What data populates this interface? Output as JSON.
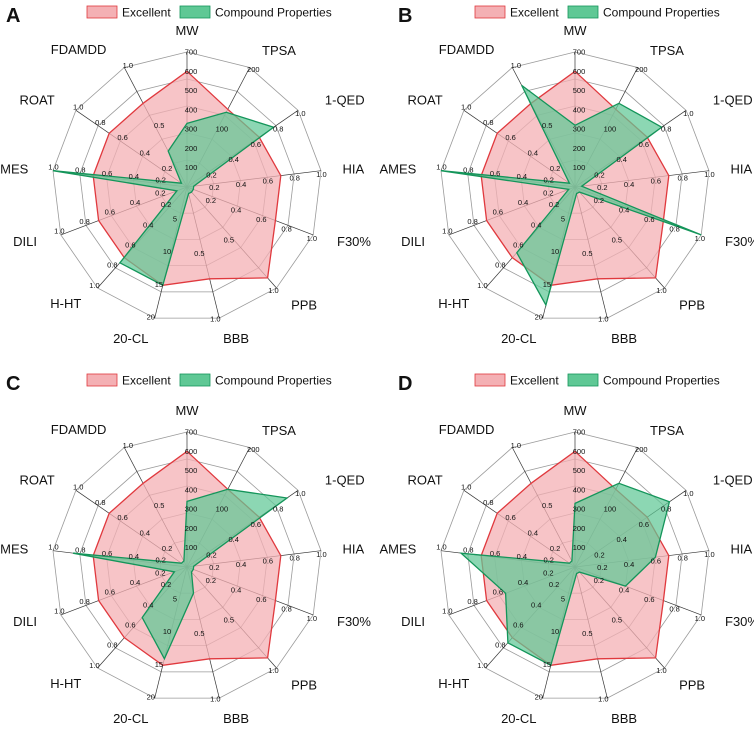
{
  "chart_data": [
    {
      "type": "radar",
      "panel": "A",
      "legend": [
        "Excellent",
        "Compound Properties"
      ],
      "axes": [
        "MW",
        "TPSA",
        "1-QED",
        "HIA",
        "F30%",
        "PPB",
        "BBB",
        "20-CL",
        "H-HT",
        "DILI",
        "AMES",
        "ROAT",
        "FDAMDD"
      ],
      "axis_max": [
        700,
        200,
        1.0,
        1.0,
        1.0,
        1.0,
        1.0,
        20,
        1.0,
        1.0,
        1.0,
        1.0,
        1.0
      ],
      "axis_ticks": [
        [
          "100",
          "200",
          "300",
          "400",
          "500",
          "600",
          "700"
        ],
        [
          "100",
          "200"
        ],
        [
          "0.2",
          "0.4",
          "0.6",
          "0.8",
          "1.0"
        ],
        [
          "0.2",
          "0.4",
          "0.6",
          "0.8",
          "1.0"
        ],
        [
          "0.2",
          "0.4",
          "0.6",
          "0.8",
          "1.0"
        ],
        [
          "0.5",
          "1.0"
        ],
        [
          "0.5",
          "1.0"
        ],
        [
          "5",
          "10",
          "15",
          "20"
        ],
        [
          "0.2",
          "0.4",
          "0.6",
          "0.8",
          "1.0"
        ],
        [
          "0.2",
          "0.4",
          "0.6",
          "0.8",
          "1.0"
        ],
        [
          "0.2",
          "0.4",
          "0.6",
          "0.8",
          "1.0"
        ],
        [
          "0.2",
          "0.4",
          "0.6",
          "0.8",
          "1.0"
        ],
        [
          "0.5",
          "1.0"
        ]
      ],
      "series": [
        {
          "name": "Excellent",
          "values": [
            600,
            130,
            0.65,
            0.7,
            0.7,
            0.9,
            0.7,
            15,
            0.7,
            0.7,
            0.7,
            0.7,
            0.7
          ]
        },
        {
          "name": "Compound Properties",
          "values": [
            330,
            125,
            0.78,
            0.05,
            0.05,
            0.05,
            0.05,
            15,
            0.75,
            0.08,
            1.0,
            0.05,
            0.3
          ]
        }
      ]
    },
    {
      "type": "radar",
      "panel": "B",
      "legend": [
        "Excellent",
        "Compound Properties"
      ],
      "axes": [
        "MW",
        "TPSA",
        "1-QED",
        "HIA",
        "F30%",
        "PPB",
        "BBB",
        "20-CL",
        "H-HT",
        "DILI",
        "AMES",
        "ROAT",
        "FDAMDD"
      ],
      "axis_max": [
        700,
        200,
        1.0,
        1.0,
        1.0,
        1.0,
        1.0,
        20,
        1.0,
        1.0,
        1.0,
        1.0,
        1.0
      ],
      "axis_ticks": [
        [
          "100",
          "200",
          "300",
          "400",
          "500",
          "600",
          "700"
        ],
        [
          "100",
          "200"
        ],
        [
          "0.2",
          "0.4",
          "0.6",
          "0.8",
          "1.0"
        ],
        [
          "0.2",
          "0.4",
          "0.6",
          "0.8",
          "1.0"
        ],
        [
          "0.2",
          "0.4",
          "0.6",
          "0.8",
          "1.0"
        ],
        [
          "0.5",
          "1.0"
        ],
        [
          "0.5",
          "1.0"
        ],
        [
          "5",
          "10",
          "15",
          "20"
        ],
        [
          "0.2",
          "0.4",
          "0.6",
          "0.8",
          "1.0"
        ],
        [
          "0.2",
          "0.4",
          "0.6",
          "0.8",
          "1.0"
        ],
        [
          "0.2",
          "0.4",
          "0.6",
          "0.8",
          "1.0"
        ],
        [
          "0.2",
          "0.4",
          "0.6",
          "0.8",
          "1.0"
        ],
        [
          "0.5",
          "1.0"
        ]
      ],
      "series": [
        {
          "name": "Excellent",
          "values": [
            600,
            130,
            0.65,
            0.7,
            0.7,
            0.9,
            0.7,
            15,
            0.7,
            0.7,
            0.7,
            0.7,
            0.7
          ]
        },
        {
          "name": "Compound Properties",
          "values": [
            320,
            140,
            0.78,
            0.05,
            1.0,
            0.05,
            0.05,
            18,
            0.65,
            0.05,
            1.0,
            0.05,
            0.85
          ]
        }
      ]
    },
    {
      "type": "radar",
      "panel": "C",
      "legend": [
        "Excellent",
        "Compound Properties"
      ],
      "axes": [
        "MW",
        "TPSA",
        "1-QED",
        "HIA",
        "F30%",
        "PPB",
        "BBB",
        "20-CL",
        "H-HT",
        "DILI",
        "AMES",
        "ROAT",
        "FDAMDD"
      ],
      "axis_max": [
        700,
        200,
        1.0,
        1.0,
        1.0,
        1.0,
        1.0,
        20,
        1.0,
        1.0,
        1.0,
        1.0,
        1.0
      ],
      "axis_ticks": [
        [
          "100",
          "200",
          "300",
          "400",
          "500",
          "600",
          "700"
        ],
        [
          "100",
          "200"
        ],
        [
          "0.2",
          "0.4",
          "0.6",
          "0.8",
          "1.0"
        ],
        [
          "0.2",
          "0.4",
          "0.6",
          "0.8",
          "1.0"
        ],
        [
          "0.2",
          "0.4",
          "0.6",
          "0.8",
          "1.0"
        ],
        [
          "0.5",
          "1.0"
        ],
        [
          "0.5",
          "1.0"
        ],
        [
          "5",
          "10",
          "15",
          "20"
        ],
        [
          "0.2",
          "0.4",
          "0.6",
          "0.8",
          "1.0"
        ],
        [
          "0.2",
          "0.4",
          "0.6",
          "0.8",
          "1.0"
        ],
        [
          "0.2",
          "0.4",
          "0.6",
          "0.8",
          "1.0"
        ],
        [
          "0.2",
          "0.4",
          "0.6",
          "0.8",
          "1.0"
        ],
        [
          "0.5",
          "1.0"
        ]
      ],
      "series": [
        {
          "name": "Excellent",
          "values": [
            600,
            130,
            0.65,
            0.7,
            0.7,
            0.9,
            0.7,
            15,
            0.7,
            0.7,
            0.7,
            0.7,
            0.7
          ]
        },
        {
          "name": "Compound Properties",
          "values": [
            340,
            130,
            0.9,
            0.05,
            0.05,
            0.05,
            0.2,
            14,
            0.5,
            0.1,
            0.85,
            0.05,
            0.05
          ]
        }
      ]
    },
    {
      "type": "radar",
      "panel": "D",
      "legend": [
        "Excellent",
        "Compound Properties"
      ],
      "axes": [
        "MW",
        "TPSA",
        "1-QED",
        "HIA",
        "F30%",
        "PPB",
        "BBB",
        "20-CL",
        "H-HT",
        "DILI",
        "AMES",
        "ROAT",
        "FDAMDD"
      ],
      "axis_max": [
        700,
        200,
        1.0,
        1.0,
        1.0,
        1.0,
        1.0,
        20,
        1.0,
        1.0,
        1.0,
        1.0,
        1.0
      ],
      "axis_ticks": [
        [
          "100",
          "200",
          "300",
          "400",
          "500",
          "600",
          "700"
        ],
        [
          "100",
          "200"
        ],
        [
          "0.2",
          "0.4",
          "0.6",
          "0.8",
          "1.0"
        ],
        [
          "0.2",
          "0.4",
          "0.6",
          "0.8",
          "1.0"
        ],
        [
          "0.2",
          "0.4",
          "0.6",
          "0.8",
          "1.0"
        ],
        [
          "0.5",
          "1.0"
        ],
        [
          "0.5",
          "1.0"
        ],
        [
          "5",
          "10",
          "15",
          "20"
        ],
        [
          "0.2",
          "0.4",
          "0.6",
          "0.8",
          "1.0"
        ],
        [
          "0.2",
          "0.4",
          "0.6",
          "0.8",
          "1.0"
        ],
        [
          "0.2",
          "0.4",
          "0.6",
          "0.8",
          "1.0"
        ],
        [
          "0.2",
          "0.4",
          "0.6",
          "0.8",
          "1.0"
        ],
        [
          "0.5",
          "1.0"
        ]
      ],
      "series": [
        {
          "name": "Excellent",
          "values": [
            600,
            130,
            0.65,
            0.7,
            0.7,
            0.9,
            0.7,
            15,
            0.7,
            0.7,
            0.7,
            0.7,
            0.7
          ]
        },
        {
          "name": "Compound Properties",
          "values": [
            330,
            140,
            0.85,
            0.6,
            0.4,
            0.05,
            0.05,
            15,
            0.75,
            0.55,
            0.85,
            0.05,
            0.05
          ]
        }
      ]
    }
  ],
  "colors": {
    "excellent_fill": "#f4b0b4",
    "excellent_stroke": "#e0393e",
    "compound_fill": "#5fc895",
    "compound_stroke": "#14955a",
    "grid": "#9a9a9a",
    "spoke": "#333333"
  }
}
